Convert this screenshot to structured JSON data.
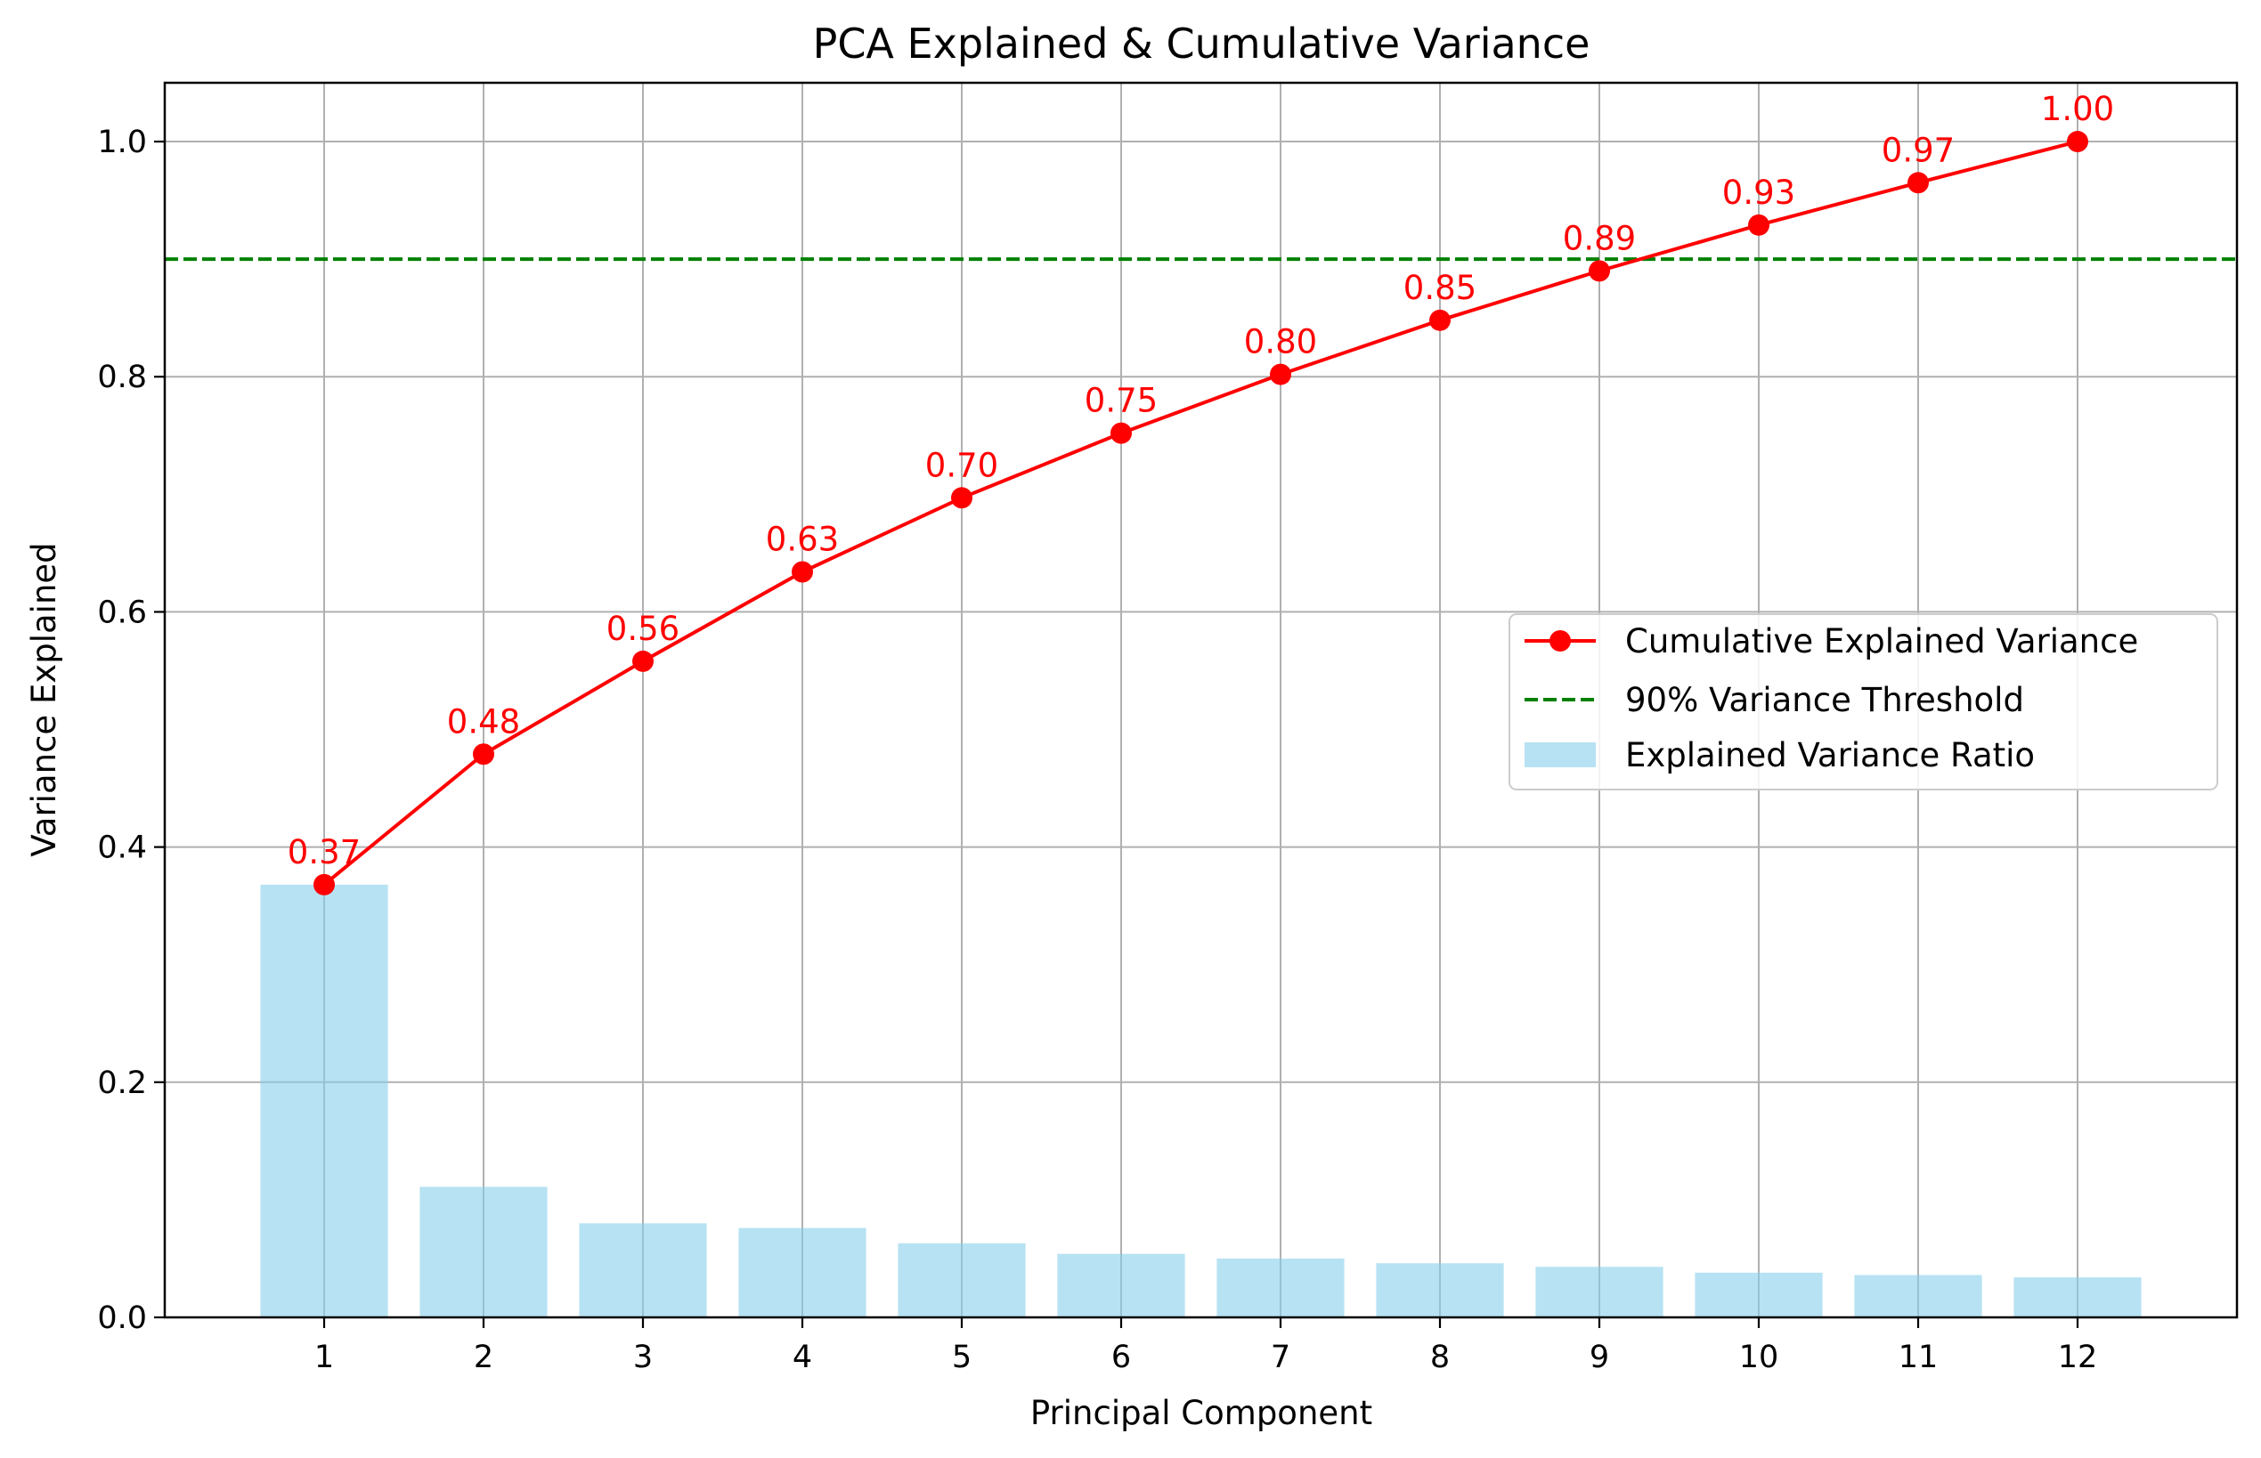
{
  "chart_data": {
    "type": "bar",
    "title": "PCA Explained & Cumulative Variance",
    "xlabel": "Principal Component",
    "ylabel": "Variance Explained",
    "categories": [
      "1",
      "2",
      "3",
      "4",
      "5",
      "6",
      "7",
      "8",
      "9",
      "10",
      "11",
      "12"
    ],
    "xlim": [
      0,
      13
    ],
    "ylim": [
      0,
      1.05
    ],
    "yticks": [
      0.0,
      0.2,
      0.4,
      0.6,
      0.8,
      1.0
    ],
    "ytick_labels": [
      "0.0",
      "0.2",
      "0.4",
      "0.6",
      "0.8",
      "1.0"
    ],
    "grid": true,
    "series": [
      {
        "name": "Explained Variance Ratio",
        "kind": "bar",
        "color": "#87ceeb",
        "values": [
          0.368,
          0.111,
          0.08,
          0.076,
          0.063,
          0.054,
          0.05,
          0.046,
          0.043,
          0.038,
          0.036,
          0.034
        ]
      },
      {
        "name": "Cumulative Explained Variance",
        "kind": "line",
        "marker": "circle",
        "color": "#ff0000",
        "values": [
          0.368,
          0.479,
          0.558,
          0.634,
          0.697,
          0.752,
          0.802,
          0.848,
          0.89,
          0.929,
          0.965,
          1.0
        ],
        "data_labels": [
          "0.37",
          "0.48",
          "0.56",
          "0.63",
          "0.70",
          "0.75",
          "0.80",
          "0.85",
          "0.89",
          "0.93",
          "0.97",
          "1.00"
        ]
      },
      {
        "name": "90% Variance Threshold",
        "kind": "hline",
        "style": "dashed",
        "color": "#008000",
        "value": 0.9
      }
    ],
    "legend": {
      "position": "center-right",
      "entries": [
        "Cumulative Explained Variance",
        "90% Variance Threshold",
        "Explained Variance Ratio"
      ]
    }
  }
}
